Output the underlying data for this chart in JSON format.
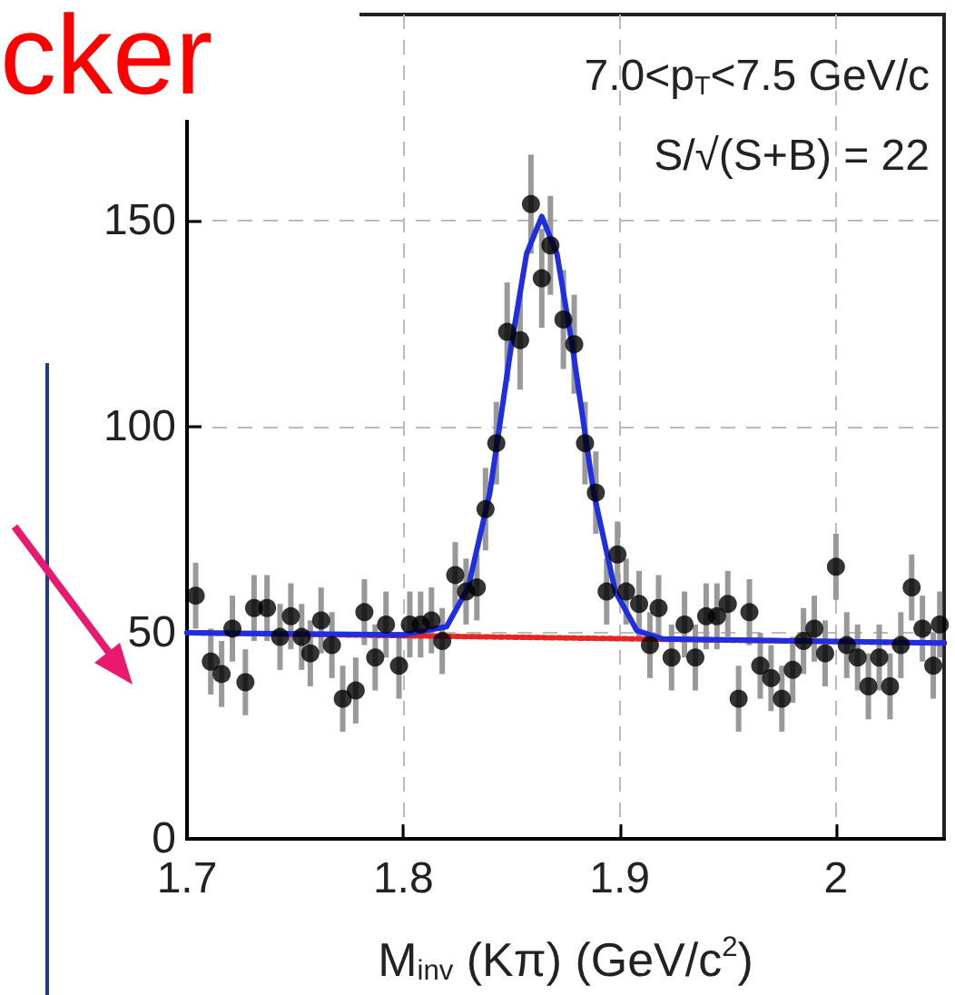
{
  "chart_data": {
    "type": "scatter",
    "xlabel": "M$_{inv}$ (Kπ) (GeV/c$^{2}$)",
    "annotations": [
      "cker",
      "7.0<p$_{T}$<7.5 GeV/c",
      "S/√(S+B) = 22"
    ],
    "xlim": [
      1.7,
      2.05
    ],
    "xticks": [
      1.7,
      1.8,
      1.9,
      {
        "value": 2.0,
        "label": "2"
      }
    ],
    "ylim": [
      0,
      200
    ],
    "yticks": [
      0,
      50,
      100,
      150
    ],
    "grid": true,
    "series": [
      {
        "color": "#000000",
        "marker": "circle",
        "x": [
          1.704,
          1.711,
          1.716,
          1.721,
          1.727,
          1.731,
          1.737,
          1.743,
          1.748,
          1.753,
          1.757,
          1.762,
          1.767,
          1.772,
          1.778,
          1.782,
          1.787,
          1.792,
          1.798,
          1.803,
          1.808,
          1.813,
          1.818,
          1.824,
          1.829,
          1.834,
          1.838,
          1.843,
          1.848,
          1.854,
          1.859,
          1.864,
          1.868,
          1.874,
          1.879,
          1.884,
          1.889,
          1.894,
          1.899,
          1.903,
          1.909,
          1.914,
          1.918,
          1.924,
          1.93,
          1.935,
          1.94,
          1.945,
          1.95,
          1.955,
          1.96,
          1.965,
          1.97,
          1.975,
          1.98,
          1.985,
          1.99,
          1.995,
          2.0,
          2.005,
          2.01,
          2.015,
          2.02,
          2.025,
          2.03,
          2.035,
          2.04,
          2.045,
          2.048
        ],
        "values": [
          59,
          43,
          40,
          51,
          38,
          56,
          56,
          49,
          54,
          49,
          45,
          53,
          47,
          34,
          36,
          55,
          44,
          52,
          42,
          52,
          52,
          53,
          48,
          64,
          60,
          61,
          80,
          96,
          123,
          121,
          154,
          136,
          144,
          126,
          120,
          96,
          84,
          60,
          69,
          60,
          57,
          47,
          56,
          44,
          52,
          44,
          54,
          54,
          57,
          34,
          55,
          42,
          39,
          34,
          41,
          48,
          51,
          45,
          66,
          47,
          44,
          37,
          44,
          37,
          47,
          61,
          51,
          42,
          52
        ],
        "errors": [
          8,
          8,
          8,
          8,
          8,
          8,
          8,
          8,
          8,
          8,
          8,
          8,
          8,
          8,
          8,
          8,
          8,
          8,
          8,
          8,
          8,
          8,
          8,
          8,
          8,
          8,
          10,
          10,
          12,
          12,
          12,
          12,
          12,
          12,
          12,
          10,
          10,
          8,
          8,
          8,
          8,
          8,
          8,
          8,
          8,
          8,
          8,
          8,
          8,
          8,
          8,
          8,
          8,
          8,
          8,
          8,
          8,
          8,
          8,
          8,
          8,
          8,
          8,
          8,
          8,
          8,
          8,
          8,
          8
        ]
      },
      {
        "type": "line",
        "color": "#e8251f",
        "line_style": "dotted",
        "marker": "none",
        "x": [
          1.7,
          2.05
        ],
        "values": [
          50,
          47.5
        ]
      },
      {
        "type": "line",
        "color": "#1f2ee0",
        "line_style": "solid",
        "marker": "none",
        "x": [
          1.7,
          1.8,
          1.82,
          1.83,
          1.84,
          1.85,
          1.857,
          1.864,
          1.871,
          1.878,
          1.888,
          1.898,
          1.908,
          1.92,
          2.05
        ],
        "values": [
          50,
          49.5,
          51.5,
          61,
          84,
          120,
          142,
          151,
          142,
          120,
          84,
          60,
          50.5,
          48.5,
          47.5
        ]
      }
    ]
  }
}
